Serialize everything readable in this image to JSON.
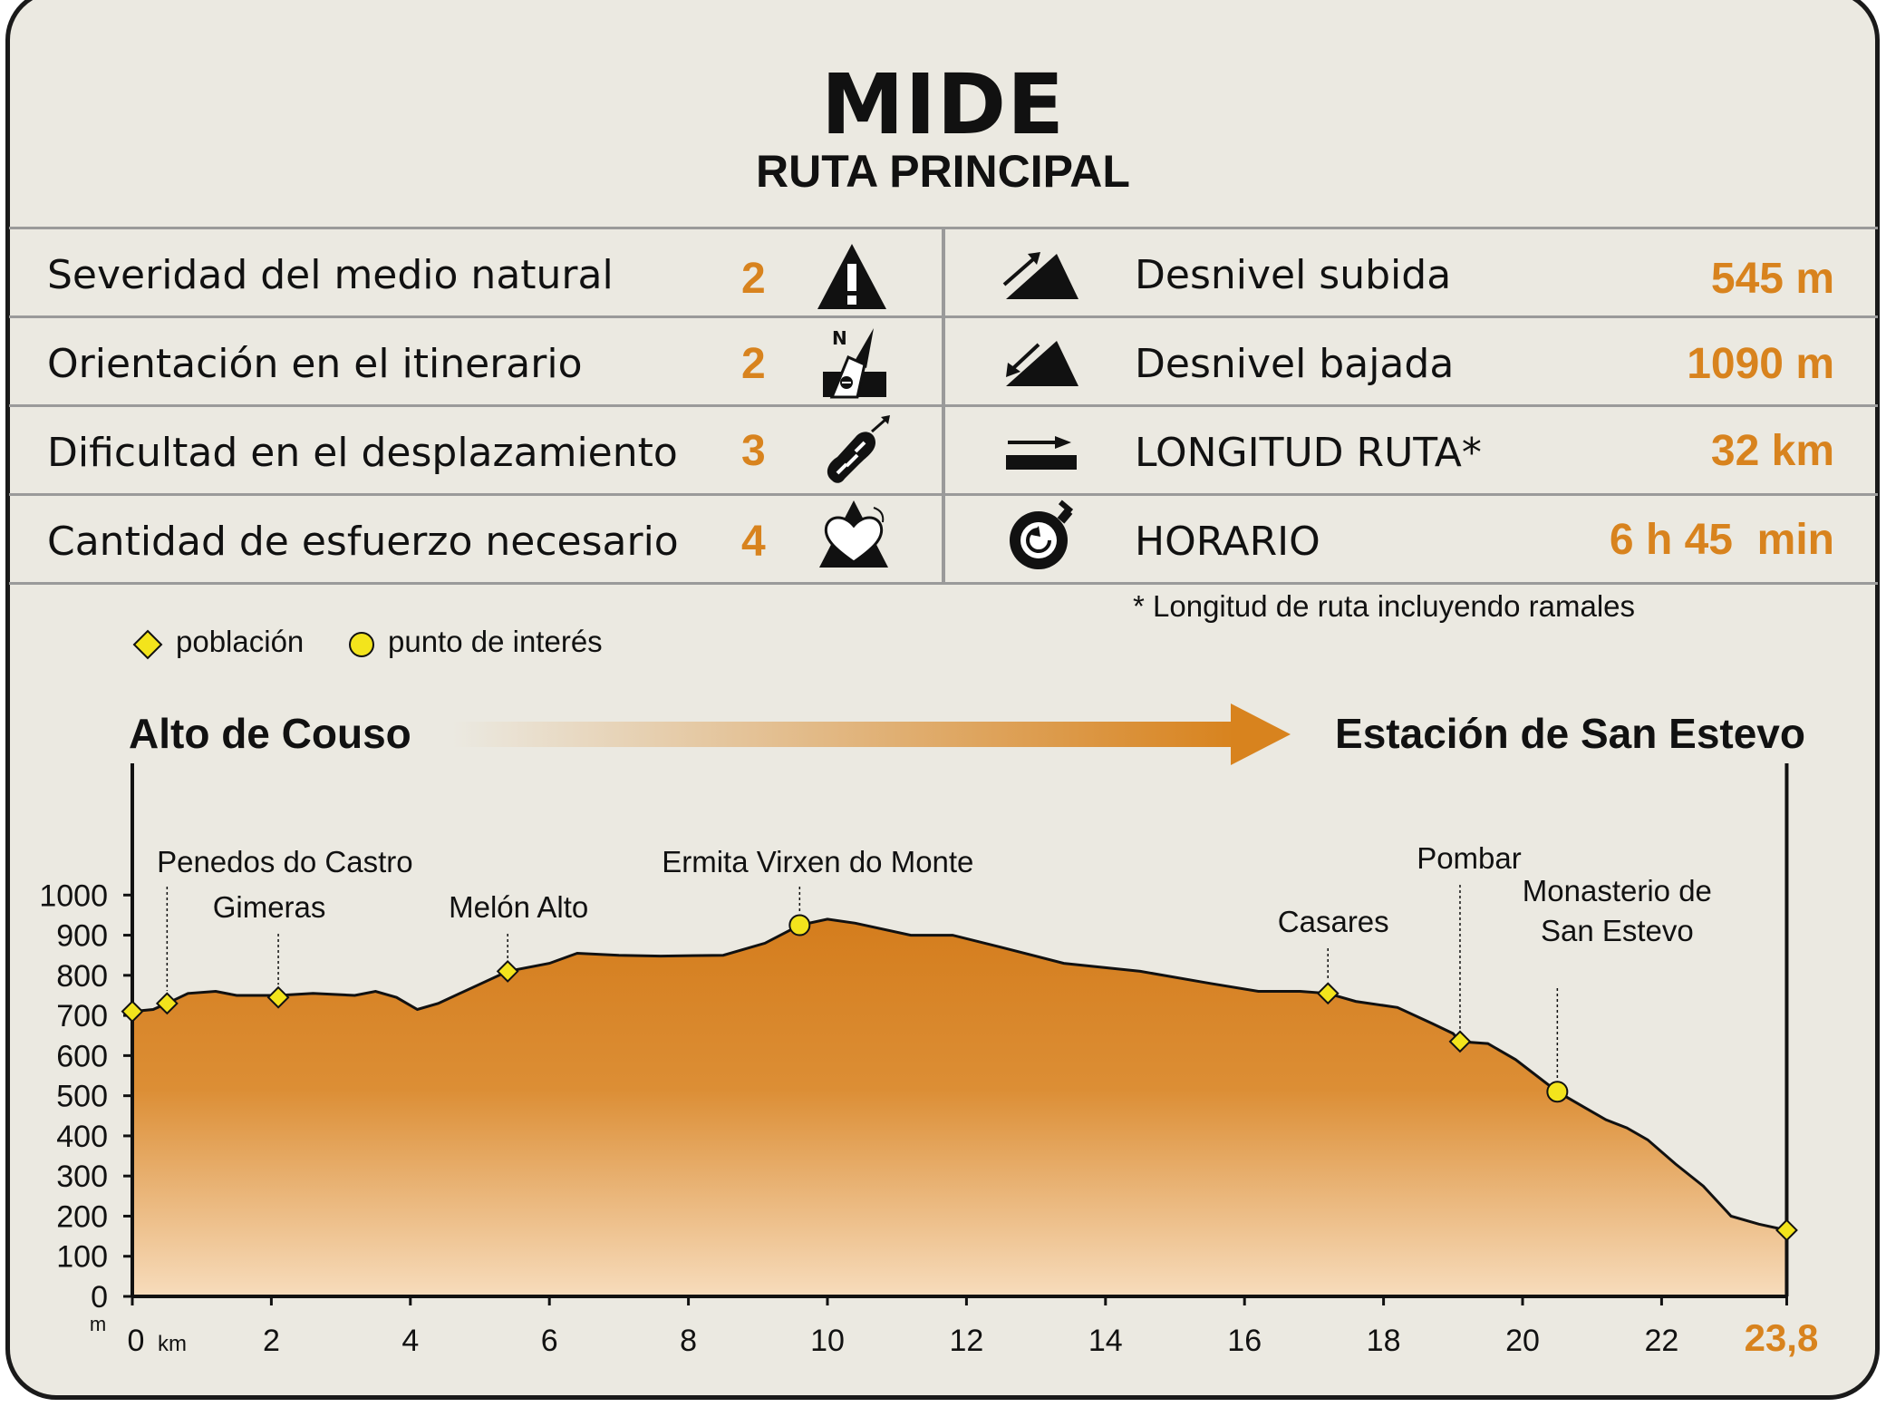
{
  "header": {
    "title": "MIDE",
    "subtitle": "RUTA PRINCIPAL"
  },
  "mide_left": [
    {
      "label": "Severidad del medio natural",
      "value": "2",
      "icon": "warning-triangle-icon"
    },
    {
      "label": "Orientación en el itinerario",
      "value": "2",
      "icon": "compass-signpost-icon"
    },
    {
      "label": "Dificultad en el desplazamiento",
      "value": "3",
      "icon": "boot-print-icon"
    },
    {
      "label": "Cantidad de esfuerzo necesario",
      "value": "4",
      "icon": "heart-mountain-icon"
    }
  ],
  "mide_right": [
    {
      "label": "Desnivel subida",
      "value": "545 m",
      "icon": "ascent-icon"
    },
    {
      "label": "Desnivel bajada",
      "value": "1090 m",
      "icon": "descent-icon"
    },
    {
      "label": "LONGITUD RUTA*",
      "value": "32 km",
      "icon": "length-arrow-icon"
    },
    {
      "label": "HORARIO",
      "value": "6 h 45  min",
      "icon": "stopwatch-icon"
    }
  ],
  "footnote": "* Longitud de ruta incluyendo ramales",
  "legend": {
    "town": "población",
    "poi": "punto de interés"
  },
  "route": {
    "start": "Alto de Couso",
    "end": "Estación de San Estevo"
  },
  "colors": {
    "accent": "#d8831e",
    "fill_top": "#d47d1d",
    "fill_bottom": "#f7dcbc",
    "marker": "#f3e41c",
    "background": "#ebe9e1"
  },
  "chart_data": {
    "type": "area",
    "x_unit": "km",
    "y_unit": "m",
    "xlim": [
      0,
      24
    ],
    "ylim": [
      0,
      1000
    ],
    "x_ticks": [
      "0",
      "2",
      "4",
      "6",
      "8",
      "10",
      "12",
      "14",
      "16",
      "18",
      "20",
      "22"
    ],
    "x_end_label": "23,8",
    "y_ticks": [
      "0",
      "100",
      "200",
      "300",
      "400",
      "500",
      "600",
      "700",
      "800",
      "900",
      "1000"
    ],
    "profile": [
      [
        0,
        710
      ],
      [
        0.3,
        715
      ],
      [
        0.5,
        730
      ],
      [
        0.8,
        755
      ],
      [
        1.2,
        760
      ],
      [
        1.5,
        750
      ],
      [
        2.1,
        750
      ],
      [
        2.6,
        755
      ],
      [
        3.2,
        750
      ],
      [
        3.5,
        760
      ],
      [
        3.8,
        745
      ],
      [
        4.1,
        715
      ],
      [
        4.4,
        730
      ],
      [
        5.4,
        810
      ],
      [
        6.0,
        830
      ],
      [
        6.4,
        855
      ],
      [
        7.0,
        850
      ],
      [
        7.6,
        848
      ],
      [
        8.5,
        850
      ],
      [
        9.1,
        880
      ],
      [
        9.6,
        925
      ],
      [
        10.0,
        940
      ],
      [
        10.4,
        930
      ],
      [
        11.2,
        900
      ],
      [
        11.8,
        900
      ],
      [
        12.5,
        870
      ],
      [
        13.4,
        830
      ],
      [
        14.5,
        810
      ],
      [
        15.5,
        780
      ],
      [
        16.2,
        760
      ],
      [
        16.8,
        760
      ],
      [
        17.2,
        755
      ],
      [
        17.6,
        735
      ],
      [
        18.2,
        720
      ],
      [
        18.7,
        680
      ],
      [
        19.0,
        655
      ],
      [
        19.1,
        635
      ],
      [
        19.5,
        630
      ],
      [
        19.9,
        590
      ],
      [
        20.5,
        510
      ],
      [
        20.9,
        470
      ],
      [
        21.2,
        440
      ],
      [
        21.5,
        420
      ],
      [
        21.8,
        390
      ],
      [
        22.2,
        330
      ],
      [
        22.6,
        275
      ],
      [
        23.0,
        200
      ],
      [
        23.4,
        180
      ],
      [
        23.8,
        165
      ]
    ],
    "points": [
      {
        "name": "",
        "x": 0.0,
        "y": 710,
        "kind": "town"
      },
      {
        "name": "Penedos do Castro",
        "x": 0.5,
        "y": 730,
        "kind": "town"
      },
      {
        "name": "Gimeras",
        "x": 2.1,
        "y": 745,
        "kind": "town"
      },
      {
        "name": "Melón Alto",
        "x": 5.4,
        "y": 810,
        "kind": "town"
      },
      {
        "name": "Ermita Virxen do Monte",
        "x": 9.6,
        "y": 925,
        "kind": "poi"
      },
      {
        "name": "Casares",
        "x": 17.2,
        "y": 755,
        "kind": "town"
      },
      {
        "name": "Pombar",
        "x": 19.1,
        "y": 635,
        "kind": "town"
      },
      {
        "name": "Monasterio de San Estevo",
        "name_lines": [
          "Monasterio de",
          "San Estevo"
        ],
        "x": 20.5,
        "y": 510,
        "kind": "poi"
      },
      {
        "name": "",
        "x": 23.8,
        "y": 165,
        "kind": "town"
      }
    ]
  }
}
